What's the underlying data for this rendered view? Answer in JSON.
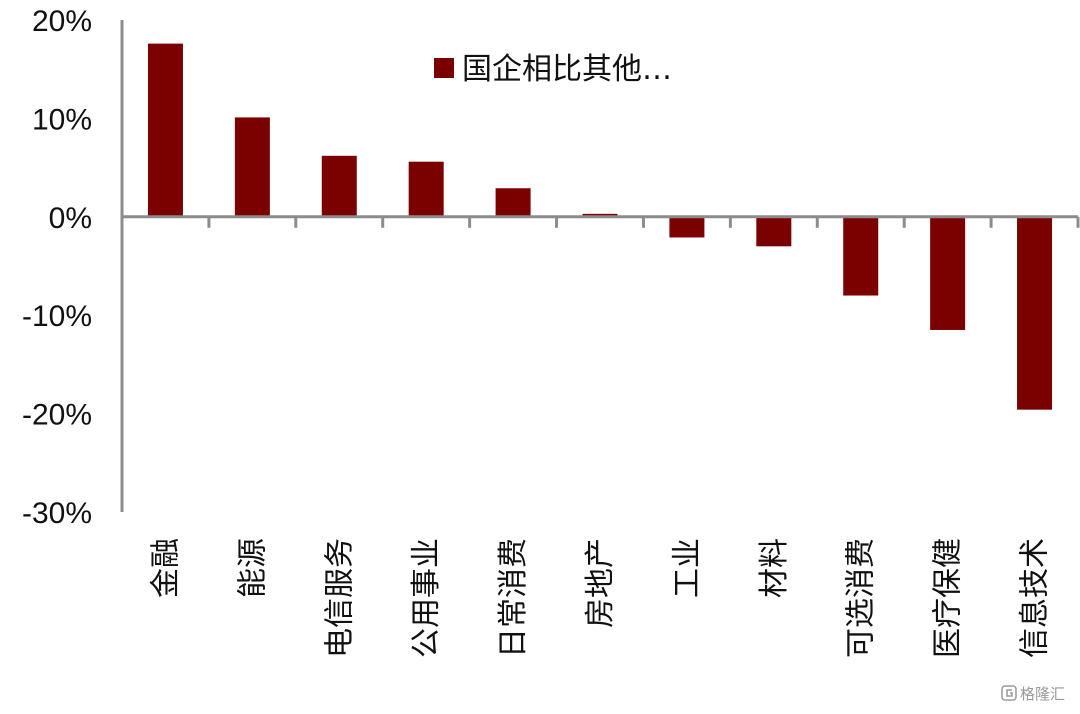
{
  "chart_data": {
    "type": "bar",
    "title": "",
    "xlabel": "",
    "ylabel": "",
    "ylim": [
      -30,
      20
    ],
    "y_ticks": [
      20,
      10,
      0,
      -10,
      -20,
      -30
    ],
    "y_tick_format": "percent",
    "grid": false,
    "legend_position": "top",
    "categories": [
      "金融",
      "能源",
      "电信服务",
      "公用事业",
      "日常消费",
      "房地产",
      "工业",
      "材料",
      "可选消费",
      "医疗保健",
      "信息技术"
    ],
    "series": [
      {
        "name": "国企相比其他…",
        "color": "#7b0000",
        "values": [
          17.6,
          10.1,
          6.2,
          5.6,
          2.9,
          0.3,
          -2.1,
          -3.0,
          -8.0,
          -11.5,
          -19.6
        ]
      }
    ]
  },
  "watermark": {
    "icon": "gelonghui-logo-icon",
    "text": "格隆汇"
  }
}
